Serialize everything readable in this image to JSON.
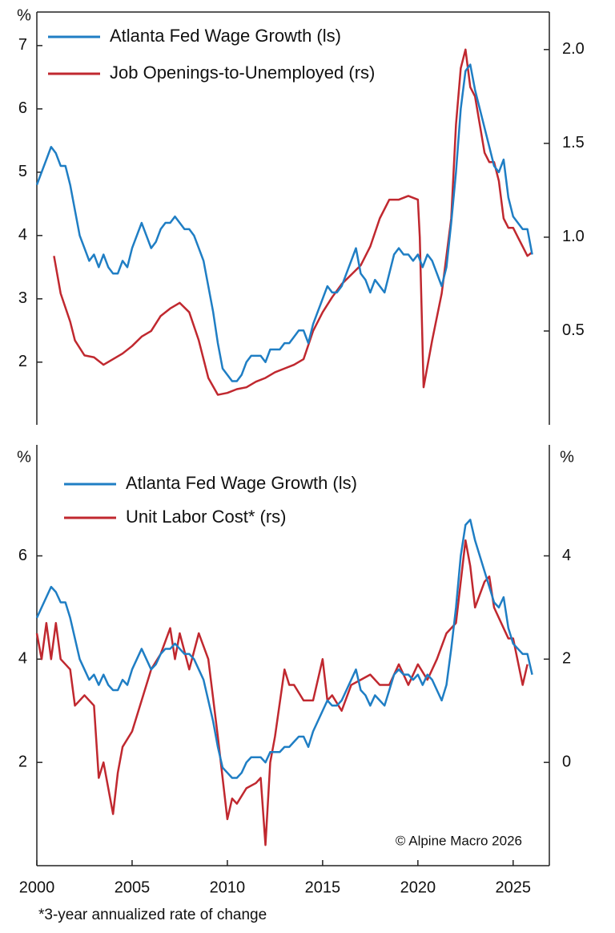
{
  "chart_data": [
    {
      "type": "line",
      "ylabel": "%",
      "xlim": [
        2000,
        2026.9
      ],
      "ylim": [
        1.01,
        7.53
      ],
      "yticks": [
        2,
        3,
        4,
        5,
        6,
        7
      ],
      "y2lim": [
        0,
        2.2
      ],
      "y2ticks": [
        {
          "value": 0.5,
          "label": "0.5"
        },
        {
          "value": 1,
          "label": "1.0"
        },
        {
          "value": 1.5,
          "label": "1.5"
        },
        {
          "value": 2,
          "label": "2.0"
        }
      ],
      "series": [
        {
          "name": "Atlanta Fed Wage Growth (ls)",
          "color": "#1f7ec4",
          "x": [
            2000,
            2000.25,
            2000.5,
            2000.75,
            2001,
            2001.25,
            2001.5,
            2001.75,
            2002,
            2002.25,
            2002.5,
            2002.75,
            2003,
            2003.25,
            2003.5,
            2003.75,
            2004,
            2004.25,
            2004.5,
            2004.75,
            2005,
            2005.25,
            2005.5,
            2005.75,
            2006,
            2006.25,
            2006.5,
            2006.75,
            2007,
            2007.25,
            2007.5,
            2007.75,
            2008,
            2008.25,
            2008.5,
            2008.75,
            2009,
            2009.25,
            2009.5,
            2009.75,
            2010,
            2010.25,
            2010.5,
            2010.75,
            2011,
            2011.25,
            2011.5,
            2011.75,
            2012,
            2012.25,
            2012.5,
            2012.75,
            2013,
            2013.25,
            2013.5,
            2013.75,
            2014,
            2014.25,
            2014.5,
            2014.75,
            2015,
            2015.25,
            2015.5,
            2015.75,
            2016,
            2016.25,
            2016.5,
            2016.75,
            2017,
            2017.25,
            2017.5,
            2017.75,
            2018,
            2018.25,
            2018.5,
            2018.75,
            2019,
            2019.25,
            2019.5,
            2019.75,
            2020,
            2020.25,
            2020.5,
            2020.75,
            2021,
            2021.25,
            2021.5,
            2021.75,
            2022,
            2022.25,
            2022.5,
            2022.75,
            2023,
            2023.25,
            2023.5,
            2023.75,
            2024,
            2024.25,
            2024.5,
            2024.75,
            2025,
            2025.25,
            2025.5,
            2025.75,
            2026
          ],
          "values": [
            4.8,
            5.0,
            5.2,
            5.4,
            5.3,
            5.1,
            5.1,
            4.8,
            4.4,
            4.0,
            3.8,
            3.6,
            3.7,
            3.5,
            3.7,
            3.5,
            3.4,
            3.4,
            3.6,
            3.5,
            3.8,
            4.0,
            4.2,
            4.0,
            3.8,
            3.9,
            4.1,
            4.2,
            4.2,
            4.3,
            4.2,
            4.1,
            4.1,
            4.0,
            3.8,
            3.6,
            3.2,
            2.8,
            2.3,
            1.9,
            1.8,
            1.7,
            1.7,
            1.8,
            2.0,
            2.1,
            2.1,
            2.1,
            2.0,
            2.2,
            2.2,
            2.2,
            2.3,
            2.3,
            2.4,
            2.5,
            2.5,
            2.3,
            2.6,
            2.8,
            3.0,
            3.2,
            3.1,
            3.1,
            3.2,
            3.4,
            3.6,
            3.8,
            3.4,
            3.3,
            3.1,
            3.3,
            3.2,
            3.1,
            3.4,
            3.7,
            3.8,
            3.7,
            3.7,
            3.6,
            3.7,
            3.5,
            3.7,
            3.6,
            3.4,
            3.2,
            3.5,
            4.2,
            5.0,
            6.0,
            6.6,
            6.7,
            6.3,
            6.0,
            5.7,
            5.4,
            5.1,
            5.0,
            5.2,
            4.6,
            4.3,
            4.2,
            4.1,
            4.1,
            3.7
          ]
        },
        {
          "name": "Job Openings-to-Unemployed (rs)",
          "color": "#c0282f",
          "axis": "y2",
          "x": [
            2000.9,
            2001.25,
            2001.75,
            2002,
            2002.5,
            2003,
            2003.5,
            2004,
            2004.5,
            2005,
            2005.5,
            2006,
            2006.5,
            2007,
            2007.5,
            2008,
            2008.5,
            2009,
            2009.5,
            2010,
            2010.5,
            2011,
            2011.5,
            2012,
            2012.5,
            2013,
            2013.5,
            2014,
            2014.5,
            2015,
            2015.5,
            2016,
            2016.5,
            2017,
            2017.5,
            2018,
            2018.5,
            2019,
            2019.5,
            2020,
            2020.1,
            2020.3,
            2020.75,
            2021.25,
            2021.75,
            2022,
            2022.25,
            2022.5,
            2022.75,
            2023,
            2023.25,
            2023.5,
            2023.75,
            2024,
            2024.25,
            2024.5,
            2024.75,
            2025,
            2025.25,
            2025.5,
            2025.75,
            2026
          ],
          "values": [
            0.9,
            0.7,
            0.55,
            0.45,
            0.37,
            0.36,
            0.32,
            0.35,
            0.38,
            0.42,
            0.47,
            0.5,
            0.58,
            0.62,
            0.65,
            0.6,
            0.45,
            0.25,
            0.16,
            0.17,
            0.19,
            0.2,
            0.23,
            0.25,
            0.28,
            0.3,
            0.32,
            0.35,
            0.5,
            0.6,
            0.68,
            0.75,
            0.8,
            0.85,
            0.95,
            1.1,
            1.2,
            1.2,
            1.22,
            1.2,
            1.0,
            0.2,
            0.45,
            0.7,
            1.1,
            1.6,
            1.9,
            2.0,
            1.8,
            1.75,
            1.6,
            1.45,
            1.4,
            1.4,
            1.3,
            1.1,
            1.05,
            1.05,
            1.0,
            0.95,
            0.9,
            0.92
          ]
        }
      ]
    },
    {
      "type": "line",
      "ylabel": "%",
      "y2label": "%",
      "xlim": [
        2000,
        2026.9
      ],
      "xticks": [
        2000,
        2005,
        2010,
        2015,
        2020,
        2025
      ],
      "ylim": [
        0,
        8.15
      ],
      "yticks": [
        2,
        4,
        6
      ],
      "y2lim": [
        -2,
        6.15
      ],
      "y2ticks": [
        0,
        2,
        4
      ],
      "annotation": "© Alpine Macro 2026",
      "footnote": "*3-year annualized rate of change",
      "series": [
        {
          "name": "Atlanta Fed Wage Growth (ls)",
          "color": "#1f7ec4",
          "x": [
            2000,
            2000.25,
            2000.5,
            2000.75,
            2001,
            2001.25,
            2001.5,
            2001.75,
            2002,
            2002.25,
            2002.5,
            2002.75,
            2003,
            2003.25,
            2003.5,
            2003.75,
            2004,
            2004.25,
            2004.5,
            2004.75,
            2005,
            2005.25,
            2005.5,
            2005.75,
            2006,
            2006.25,
            2006.5,
            2006.75,
            2007,
            2007.25,
            2007.5,
            2007.75,
            2008,
            2008.25,
            2008.5,
            2008.75,
            2009,
            2009.25,
            2009.5,
            2009.75,
            2010,
            2010.25,
            2010.5,
            2010.75,
            2011,
            2011.25,
            2011.5,
            2011.75,
            2012,
            2012.25,
            2012.5,
            2012.75,
            2013,
            2013.25,
            2013.5,
            2013.75,
            2014,
            2014.25,
            2014.5,
            2014.75,
            2015,
            2015.25,
            2015.5,
            2015.75,
            2016,
            2016.25,
            2016.5,
            2016.75,
            2017,
            2017.25,
            2017.5,
            2017.75,
            2018,
            2018.25,
            2018.5,
            2018.75,
            2019,
            2019.25,
            2019.5,
            2019.75,
            2020,
            2020.25,
            2020.5,
            2020.75,
            2021,
            2021.25,
            2021.5,
            2021.75,
            2022,
            2022.25,
            2022.5,
            2022.75,
            2023,
            2023.25,
            2023.5,
            2023.75,
            2024,
            2024.25,
            2024.5,
            2024.75,
            2025,
            2025.25,
            2025.5,
            2025.75,
            2026
          ],
          "values": [
            4.8,
            5.0,
            5.2,
            5.4,
            5.3,
            5.1,
            5.1,
            4.8,
            4.4,
            4.0,
            3.8,
            3.6,
            3.7,
            3.5,
            3.7,
            3.5,
            3.4,
            3.4,
            3.6,
            3.5,
            3.8,
            4.0,
            4.2,
            4.0,
            3.8,
            3.9,
            4.1,
            4.2,
            4.2,
            4.3,
            4.2,
            4.1,
            4.1,
            4.0,
            3.8,
            3.6,
            3.2,
            2.8,
            2.3,
            1.9,
            1.8,
            1.7,
            1.7,
            1.8,
            2.0,
            2.1,
            2.1,
            2.1,
            2.0,
            2.2,
            2.2,
            2.2,
            2.3,
            2.3,
            2.4,
            2.5,
            2.5,
            2.3,
            2.6,
            2.8,
            3.0,
            3.2,
            3.1,
            3.1,
            3.2,
            3.4,
            3.6,
            3.8,
            3.4,
            3.3,
            3.1,
            3.3,
            3.2,
            3.1,
            3.4,
            3.7,
            3.8,
            3.7,
            3.7,
            3.6,
            3.7,
            3.5,
            3.7,
            3.6,
            3.4,
            3.2,
            3.5,
            4.2,
            5.0,
            6.0,
            6.6,
            6.7,
            6.3,
            6.0,
            5.7,
            5.4,
            5.1,
            5.0,
            5.2,
            4.6,
            4.3,
            4.2,
            4.1,
            4.1,
            3.7
          ]
        },
        {
          "name": "Unit Labor Cost* (rs)",
          "color": "#c0282f",
          "axis": "y2",
          "x": [
            2000,
            2000.25,
            2000.5,
            2000.75,
            2001,
            2001.25,
            2001.75,
            2002,
            2002.5,
            2003,
            2003.25,
            2003.5,
            2003.75,
            2004,
            2004.25,
            2004.5,
            2005,
            2005.5,
            2006,
            2006.5,
            2007,
            2007.25,
            2007.5,
            2008,
            2008.5,
            2009,
            2009.5,
            2010,
            2010.25,
            2010.5,
            2011,
            2011.5,
            2011.75,
            2012,
            2012.25,
            2012.5,
            2013,
            2013.25,
            2013.5,
            2014,
            2014.5,
            2015,
            2015.25,
            2015.5,
            2016,
            2016.5,
            2017,
            2017.5,
            2018,
            2018.5,
            2019,
            2019.5,
            2020,
            2020.5,
            2021,
            2021.5,
            2022,
            2022.25,
            2022.5,
            2022.75,
            2023,
            2023.5,
            2023.75,
            2024,
            2024.5,
            2024.75,
            2025,
            2025.5,
            2025.75
          ],
          "values": [
            2.5,
            2.0,
            2.7,
            2.0,
            2.7,
            2.0,
            1.8,
            1.1,
            1.3,
            1.1,
            -0.3,
            0.0,
            -0.5,
            -1.0,
            -0.2,
            0.3,
            0.6,
            1.2,
            1.8,
            2.1,
            2.6,
            2.0,
            2.5,
            1.8,
            2.5,
            2.0,
            0.5,
            -1.1,
            -0.7,
            -0.8,
            -0.5,
            -0.4,
            -0.3,
            -1.6,
            0.0,
            0.5,
            1.8,
            1.5,
            1.5,
            1.2,
            1.2,
            2.0,
            1.2,
            1.3,
            1.0,
            1.5,
            1.6,
            1.7,
            1.5,
            1.5,
            1.9,
            1.5,
            1.9,
            1.6,
            2.0,
            2.5,
            2.7,
            3.5,
            4.3,
            3.8,
            3.0,
            3.5,
            3.6,
            3.0,
            2.6,
            2.4,
            2.4,
            1.5,
            1.9
          ]
        }
      ]
    }
  ]
}
